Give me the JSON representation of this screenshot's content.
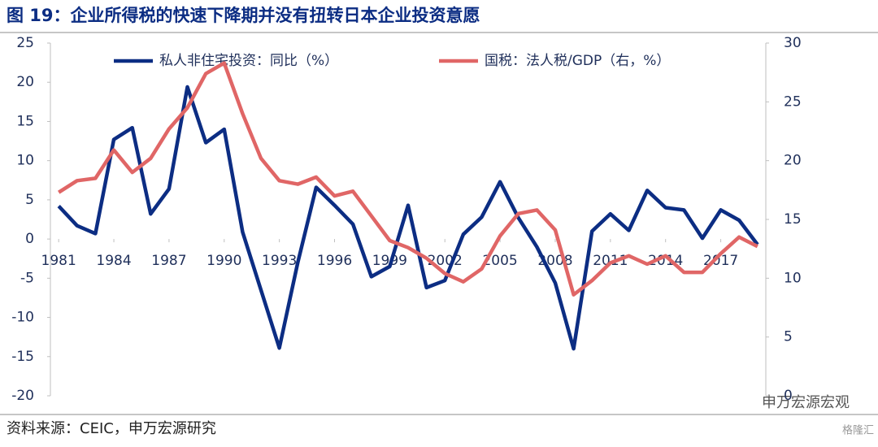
{
  "chart_data": {
    "type": "line",
    "title": "图 19：企业所得税的快速下降期并没有扭转日本企业投资意愿",
    "source": "资料来源：CEIC，申万宏源研究",
    "watermark": "申万宏源宏观",
    "logo": "格隆汇",
    "x": [
      1981,
      1982,
      1983,
      1984,
      1985,
      1986,
      1987,
      1988,
      1989,
      1990,
      1991,
      1992,
      1993,
      1994,
      1995,
      1996,
      1997,
      1998,
      1999,
      2000,
      2001,
      2002,
      2003,
      2004,
      2005,
      2006,
      2007,
      2008,
      2009,
      2010,
      2011,
      2012,
      2013,
      2014,
      2015,
      2016,
      2017,
      2018,
      2019
    ],
    "xlim": [
      1980.55,
      2019.45
    ],
    "xticks": [
      1981,
      1984,
      1987,
      1990,
      1993,
      1996,
      1999,
      2002,
      2005,
      2008,
      2011,
      2014,
      2017
    ],
    "ylim": [
      -20,
      25
    ],
    "yticks": [
      25,
      20,
      15,
      10,
      5,
      0,
      -5,
      -10,
      -15,
      -20
    ],
    "y2lim": [
      0,
      30
    ],
    "y2ticks": [
      30,
      25,
      20,
      15,
      10,
      5,
      0
    ],
    "legend": "top",
    "series": [
      {
        "name": "私人非住宅投资：同比（%）",
        "color": "#0c2d83",
        "values": [
          4.2,
          1.7,
          0.7,
          12.7,
          14.2,
          3.2,
          6.4,
          19.4,
          12.3,
          14.0,
          0.9,
          -6.5,
          -13.9,
          -3.0,
          6.6,
          4.3,
          1.9,
          -4.8,
          -3.5,
          4.3,
          -6.2,
          -5.3,
          0.6,
          2.8,
          7.3,
          2.7,
          -1.0,
          -5.6,
          -14.0,
          1.0,
          3.2,
          1.1,
          6.2,
          4.0,
          3.7,
          0.1,
          3.7,
          2.4,
          -0.7
        ]
      },
      {
        "name": "国税：法人税/GDP（右，%）",
        "color": "#e06666",
        "axis": "y2",
        "values": [
          17.3,
          18.3,
          18.5,
          20.9,
          19.0,
          20.2,
          22.7,
          24.5,
          27.4,
          28.3,
          24.0,
          20.2,
          18.3,
          18.0,
          18.6,
          17.0,
          17.4,
          15.3,
          13.2,
          12.6,
          11.7,
          10.4,
          9.7,
          10.8,
          13.6,
          15.5,
          15.8,
          14.1,
          8.6,
          9.8,
          11.3,
          11.9,
          11.2,
          11.9,
          10.5,
          10.5,
          12.1,
          13.5,
          12.7
        ]
      }
    ]
  }
}
